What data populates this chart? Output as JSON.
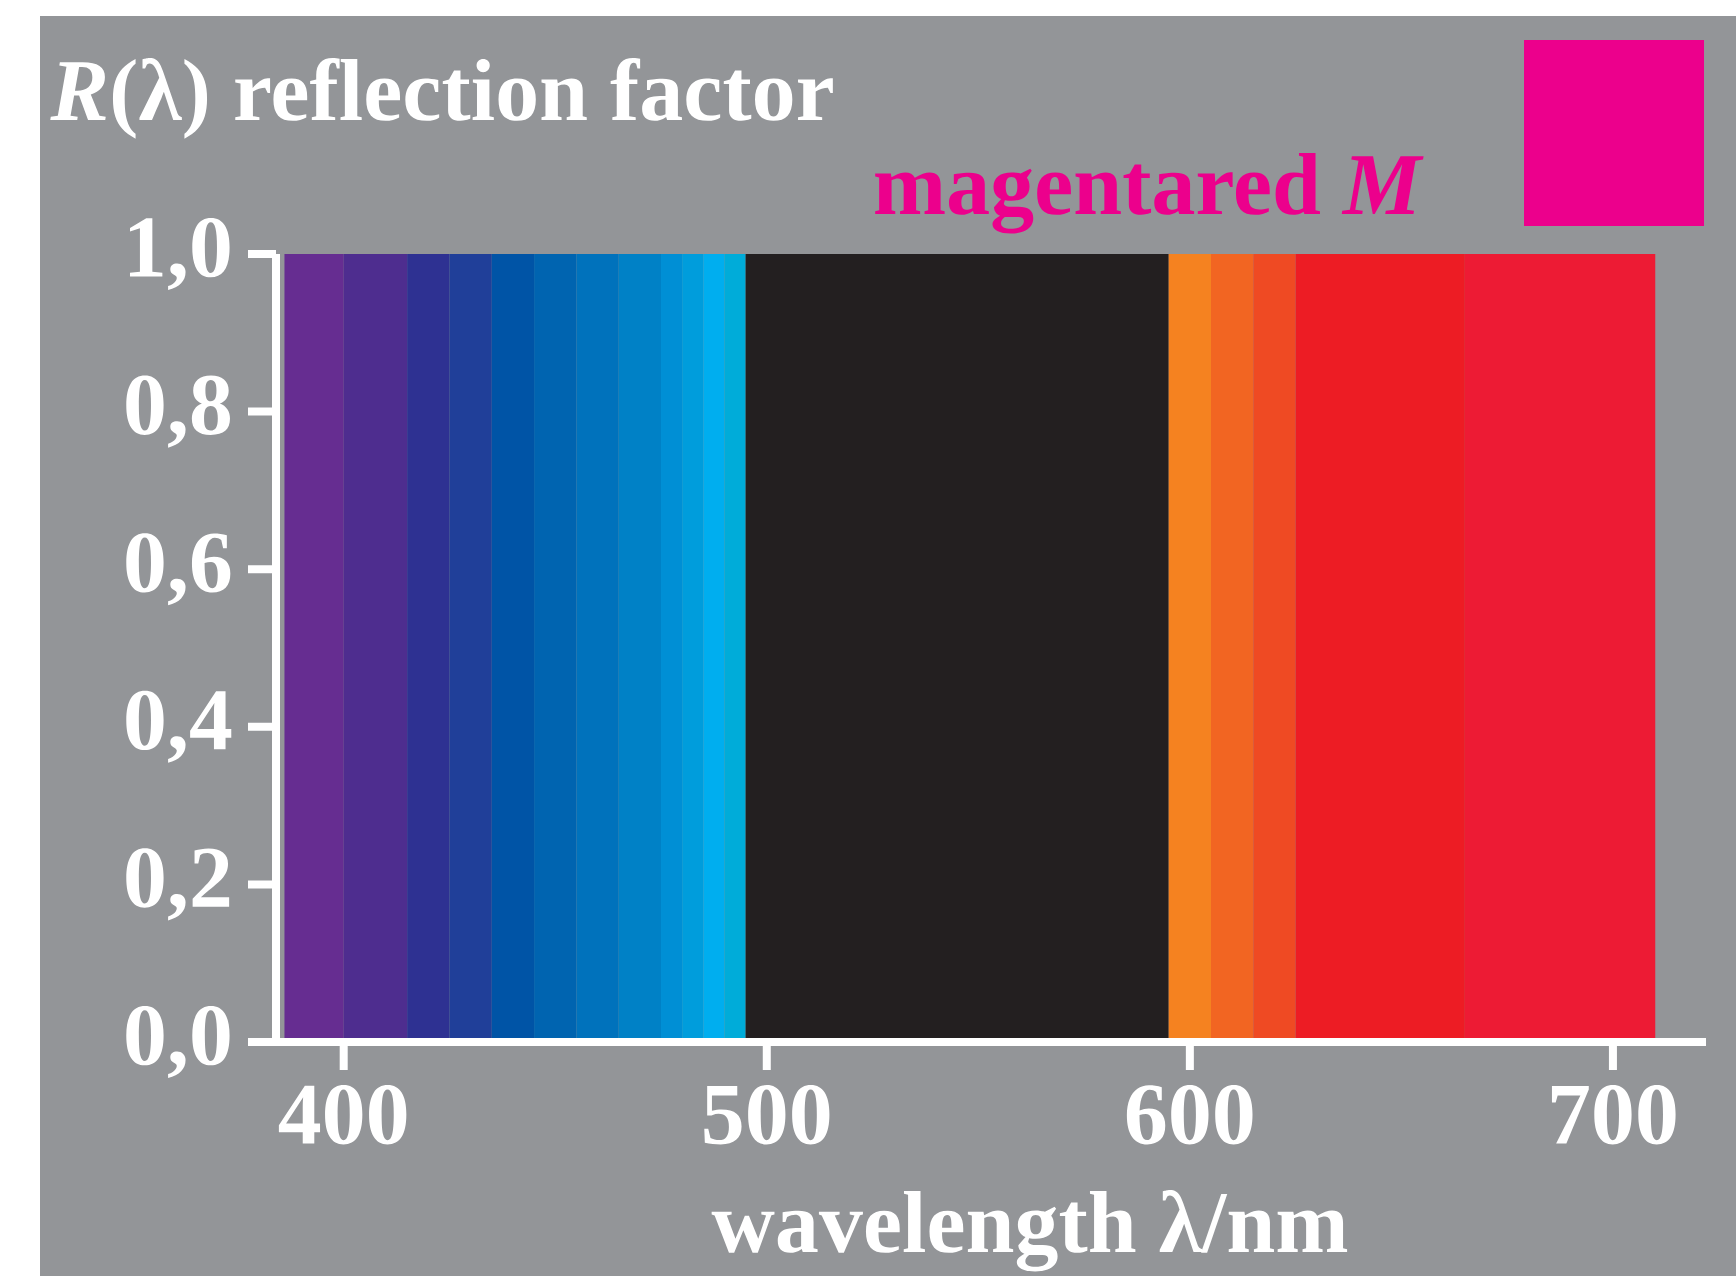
{
  "chart_data": {
    "type": "histogram",
    "title": "*R*(λ) reflection factor",
    "subtitle": "magentared *M*",
    "xlabel": "wavelength λ/nm",
    "bins": [
      386,
      400,
      415,
      425,
      435,
      445,
      455,
      465,
      475,
      480,
      485,
      490,
      495,
      595,
      605,
      615,
      625,
      665,
      710
    ],
    "values": [
      1,
      1,
      1,
      1,
      1,
      1,
      1,
      1,
      1,
      1,
      1,
      1,
      1,
      1,
      1,
      1,
      1,
      1
    ],
    "colors": [
      "#662d91",
      "#4e2d8f",
      "#2e3192",
      "#203f99",
      "#0054a6",
      "#0064b0",
      "#0072bc",
      "#0081c6",
      "#008fd5",
      "#009ddc",
      "#00aeef",
      "#00acd9",
      "#231f20",
      "#f58220",
      "#f26522",
      "#ef4a23",
      "#ed1c24",
      "#ed1b34"
    ],
    "xlim": [
      384,
      722
    ],
    "ylim": [
      0,
      1
    ],
    "xticks": [
      400,
      500,
      600,
      700
    ],
    "yticks": [
      {
        "value": 0,
        "label": "0,0"
      },
      {
        "value": 0.2,
        "label": "0,2"
      },
      {
        "value": 0.4,
        "label": "0,4"
      },
      {
        "value": 0.6,
        "label": "0,6"
      },
      {
        "value": 0.8,
        "label": "0,8"
      },
      {
        "value": 1,
        "label": "1,0"
      }
    ]
  }
}
